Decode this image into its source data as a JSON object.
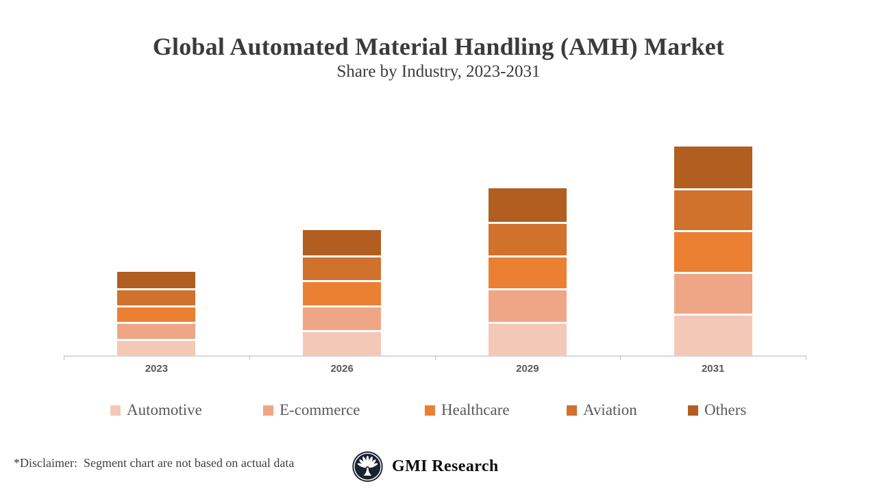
{
  "header": {
    "title": "Global Automated Material Handling (AMH) Market",
    "subtitle": "Share by Industry, 2023-2031"
  },
  "chart_data": {
    "type": "bar",
    "stacked": true,
    "title": "Global Automated Material Handling (AMH) Market",
    "subtitle": "Share by Industry, 2023-2031",
    "categories": [
      "2023",
      "2026",
      "2029",
      "2031"
    ],
    "series": [
      {
        "name": "Automotive",
        "color": "#F4C8B7",
        "values": [
          4,
          6,
          8,
          10
        ]
      },
      {
        "name": "E-commerce",
        "color": "#EFA687",
        "values": [
          4,
          6,
          8,
          10
        ]
      },
      {
        "name": "Healthcare",
        "color": "#EC8032",
        "values": [
          4,
          6,
          8,
          10
        ]
      },
      {
        "name": "Aviation",
        "color": "#D0712C",
        "values": [
          4,
          6,
          8,
          10
        ]
      },
      {
        "name": "Others",
        "color": "#B15E20",
        "values": [
          4,
          6,
          8,
          10
        ]
      }
    ],
    "year_totals": [
      20,
      30,
      40,
      50
    ],
    "value_axis_visible": false,
    "gridlines": false,
    "legend_position": "bottom",
    "axis_color": "#D9D9D9"
  },
  "footer": {
    "disclaimer": "*Disclaimer:  Segment chart are not based on actual data",
    "brand": "GMI Research",
    "logo_icon": "palm-fan-icon",
    "logo_color": "#19222F"
  }
}
